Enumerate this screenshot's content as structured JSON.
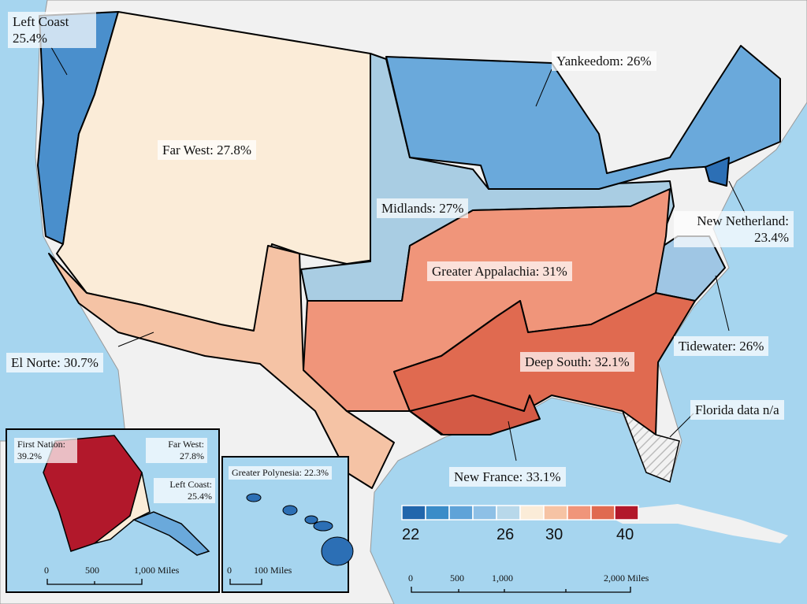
{
  "regions": [
    {
      "label": "Left Coast 25.4%",
      "color": "#4a8fcc"
    },
    {
      "label": "Far West: 27.8%",
      "color": "#fbecd8"
    },
    {
      "label": "El Norte: 30.7%",
      "color": "#f5c3a5"
    },
    {
      "label": "Midlands: 27%",
      "color": "#a9cde3"
    },
    {
      "label": "Yankeedom: 26%",
      "color": "#6aa9db"
    },
    {
      "label": "New Netherland: 23.4%",
      "color": "#2c6fb5"
    },
    {
      "label": "Tidewater: 26%",
      "color": "#9fc6e4"
    },
    {
      "label": "Greater Appalachia: 31%",
      "color": "#f0957a"
    },
    {
      "label": "Deep South: 32.1%",
      "color": "#e06a50"
    },
    {
      "label": "New France: 33.1%",
      "color": "#d45a45"
    },
    {
      "label": "Florida data n/a",
      "color": "#e8e8e8"
    }
  ],
  "alaska": {
    "regions": [
      {
        "label": "First Nation: 39.2%",
        "color": "#b2182b"
      },
      {
        "label": "Far West: 27.8%",
        "color": "#fbecd8"
      },
      {
        "label": "Left Coast: 25.4%",
        "color": "#6aa9db"
      }
    ],
    "scale": [
      "0",
      "500",
      "1,000 Miles"
    ]
  },
  "hawaii": {
    "regions": [
      {
        "label": "Greater Polynesia: 22.3%",
        "color": "#2c6fb5"
      }
    ],
    "scale": [
      "0",
      "100 Miles"
    ]
  },
  "legend": {
    "colors": [
      "#2166ac",
      "#3a8cc8",
      "#5fa3d8",
      "#8ec0e6",
      "#b8d8ea",
      "#fbecd8",
      "#f6c3a4",
      "#f0957a",
      "#e06a50",
      "#b2182b"
    ],
    "ticks": [
      22,
      26,
      30,
      40
    ]
  },
  "scale": [
    "0",
    "500",
    "1,000",
    "2,000 Miles"
  ]
}
